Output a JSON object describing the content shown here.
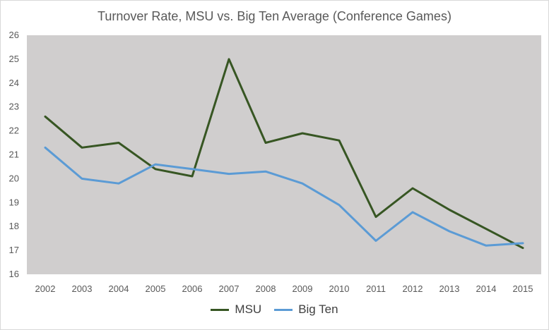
{
  "chart_data": {
    "type": "line",
    "title": "Turnover Rate, MSU vs. Big Ten Average (Conference Games)",
    "xlabel": "",
    "ylabel": "",
    "categories": [
      "2002",
      "2003",
      "2004",
      "2005",
      "2006",
      "2007",
      "2008",
      "2009",
      "2010",
      "2011",
      "2012",
      "2013",
      "2014",
      "2015"
    ],
    "ylim": [
      16,
      26
    ],
    "yticks": [
      16,
      17,
      18,
      19,
      20,
      21,
      22,
      23,
      24,
      25,
      26
    ],
    "grid": false,
    "legend_position": "bottom",
    "plot_background": "#d0cece",
    "series": [
      {
        "name": "MSU",
        "color": "#375623",
        "values": [
          22.6,
          21.3,
          21.5,
          20.4,
          20.1,
          25.0,
          21.5,
          21.9,
          21.6,
          18.4,
          19.6,
          18.7,
          17.9,
          17.1
        ]
      },
      {
        "name": "Big Ten",
        "color": "#5b9bd5",
        "values": [
          21.3,
          20.0,
          19.8,
          20.6,
          20.4,
          20.2,
          20.3,
          19.8,
          18.9,
          17.4,
          18.6,
          17.8,
          17.2,
          17.3
        ]
      }
    ]
  }
}
